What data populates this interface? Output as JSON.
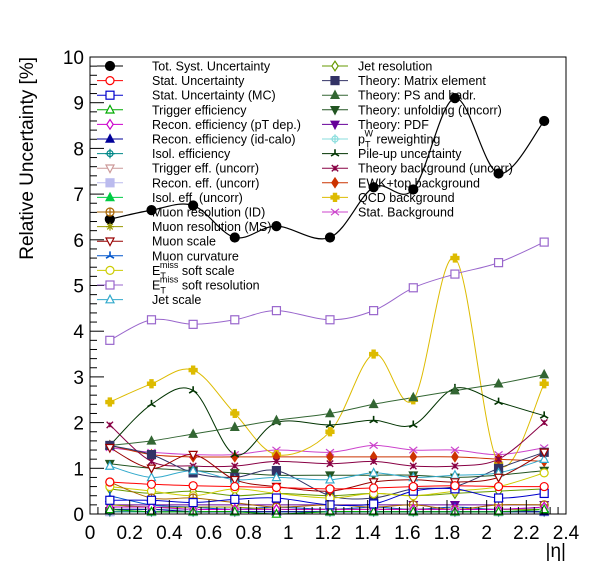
{
  "chart_data": {
    "type": "line",
    "xlabel": "|η|",
    "ylabel": "Relative Uncertainty [%]",
    "xlim": [
      0,
      2.4
    ],
    "ylim": [
      0,
      10
    ],
    "x_ticks": [
      "0",
      "0.2",
      "0.4",
      "0.6",
      "0.8",
      "1",
      "1.2",
      "1.4",
      "1.6",
      "1.8",
      "2",
      "2.2",
      "2.4"
    ],
    "y_ticks": [
      "0",
      "1",
      "2",
      "3",
      "4",
      "5",
      "6",
      "7",
      "8",
      "9",
      "10"
    ],
    "x": [
      0.1,
      0.31,
      0.52,
      0.73,
      0.94,
      1.21,
      1.43,
      1.63,
      1.84,
      2.06,
      2.29
    ],
    "grid": false,
    "legend_position": "top",
    "series": [
      {
        "name": "Tot. Syst. Uncertainty",
        "color": "#000000",
        "marker": "circle-filled",
        "values": [
          6.45,
          6.65,
          6.75,
          6.05,
          6.3,
          6.05,
          7.15,
          7.1,
          9.1,
          7.45,
          8.6
        ]
      },
      {
        "name": "Stat. Uncertainty",
        "color": "#ff0000",
        "marker": "circle-open",
        "values": [
          0.7,
          0.65,
          0.62,
          0.6,
          0.58,
          0.55,
          0.57,
          0.6,
          0.62,
          0.6,
          0.6
        ]
      },
      {
        "name": "Stat. Uncertainty (MC)",
        "color": "#0000cc",
        "marker": "square-open",
        "values": [
          0.3,
          0.3,
          0.25,
          0.32,
          0.35,
          0.2,
          0.22,
          0.5,
          0.55,
          0.35,
          0.45
        ]
      },
      {
        "name": "Trigger efficiency",
        "color": "#00aa00",
        "marker": "triangle-up-open",
        "values": [
          0.1,
          0.05,
          0.05,
          0.05,
          0.0,
          0.05,
          0.05,
          0.05,
          0.05,
          0.05,
          0.1
        ]
      },
      {
        "name": "Recon. efficiency (pT dep.)",
        "color": "#cc00cc",
        "marker": "diamond-open",
        "values": [
          0.15,
          0.15,
          0.1,
          0.1,
          0.1,
          0.1,
          0.1,
          0.1,
          0.1,
          0.1,
          0.15
        ]
      },
      {
        "name": "Recon. efficiency (id-calo)",
        "color": "#000099",
        "marker": "triangle-up-filled",
        "values": [
          0.1,
          0.1,
          0.05,
          0.05,
          0.05,
          0.05,
          0.05,
          0.05,
          0.05,
          0.05,
          0.05
        ]
      },
      {
        "name": "Isol. efficiency",
        "color": "#008888",
        "marker": "crosshair",
        "values": [
          0.05,
          0.05,
          0.05,
          0.05,
          0.05,
          0.05,
          0.05,
          0.05,
          0.05,
          0.05,
          0.05
        ]
      },
      {
        "name": "Trigger eff. (uncorr)",
        "color": "#cc9999",
        "marker": "triangle-down-open",
        "values": [
          0.05,
          0.05,
          0.05,
          0.05,
          0.05,
          0.05,
          0.05,
          0.05,
          0.05,
          0.05,
          0.05
        ]
      },
      {
        "name": "Recon. eff. (uncorr)",
        "color": "#bbbbee",
        "marker": "square-filled",
        "values": [
          0.05,
          0.05,
          0.05,
          0.05,
          0.05,
          0.05,
          0.05,
          0.05,
          0.05,
          0.05,
          0.05
        ]
      },
      {
        "name": "Isol. eff. (uncorr)",
        "color": "#00cc44",
        "marker": "triangle-up-filled",
        "values": [
          0.05,
          0.05,
          0.05,
          0.05,
          0.05,
          0.05,
          0.05,
          0.05,
          0.05,
          0.05,
          0.05
        ]
      },
      {
        "name": "Muon resolution (ID)",
        "color": "#aa6600",
        "marker": "circle-plus",
        "values": [
          0.7,
          0.35,
          0.35,
          0.25,
          0.15,
          0.2,
          0.15,
          0.2,
          0.1,
          0.2,
          0.2
        ]
      },
      {
        "name": "Muon resolution (MS)",
        "color": "#999900",
        "marker": "star",
        "values": [
          0.2,
          0.15,
          0.15,
          0.15,
          0.1,
          0.1,
          0.1,
          0.1,
          0.1,
          0.1,
          0.1
        ]
      },
      {
        "name": "Muon scale",
        "color": "#990000",
        "marker": "triangle-down-open",
        "values": [
          1.45,
          1.0,
          1.3,
          0.75,
          0.6,
          0.5,
          0.7,
          0.75,
          0.7,
          0.8,
          1.35
        ]
      },
      {
        "name": "Muon curvature",
        "color": "#0055cc",
        "marker": "tri-star",
        "values": [
          0.4,
          0.2,
          0.15,
          0.1,
          0.15,
          0.1,
          0.15,
          0.1,
          0.15,
          0.1,
          0.15
        ]
      },
      {
        "name": "E_T^miss soft scale",
        "color": "#cccc00",
        "marker": "circle-open",
        "values": [
          0.6,
          0.5,
          0.4,
          0.55,
          0.45,
          0.35,
          0.45,
          0.4,
          0.5,
          0.6,
          0.9
        ]
      },
      {
        "name": "E_T^miss soft resolution",
        "color": "#9966cc",
        "marker": "square-open",
        "values": [
          3.8,
          4.25,
          4.15,
          4.25,
          4.45,
          4.25,
          4.45,
          4.95,
          5.25,
          5.5,
          5.95
        ]
      },
      {
        "name": "Jet scale",
        "color": "#33aacc",
        "marker": "triangle-up-open",
        "values": [
          1.05,
          0.8,
          0.95,
          0.75,
          0.8,
          0.75,
          0.9,
          0.8,
          0.85,
          0.9,
          1.2
        ]
      },
      {
        "name": "Jet resolution",
        "color": "#669900",
        "marker": "diamond-open",
        "values": [
          0.55,
          0.45,
          0.5,
          0.4,
          0.45,
          0.4,
          0.45,
          0.4,
          0.45,
          0.5,
          0.55
        ]
      },
      {
        "name": "Theory: Matrix element",
        "color": "#333366",
        "marker": "square-filled",
        "values": [
          1.5,
          1.3,
          0.9,
          0.8,
          0.95,
          0.4,
          0.35,
          0.55,
          0.6,
          1.0,
          1.35
        ]
      },
      {
        "name": "Theory: PS and hadr.",
        "color": "#336633",
        "marker": "triangle-up-filled",
        "values": [
          1.5,
          1.6,
          1.75,
          1.9,
          2.05,
          2.2,
          2.4,
          2.55,
          2.7,
          2.85,
          3.05
        ]
      },
      {
        "name": "Theory: unfolding (uncorr)",
        "color": "#225522",
        "marker": "triangle-down-filled",
        "values": [
          1.1,
          1.0,
          0.95,
          0.9,
          0.85,
          0.85,
          0.85,
          0.85,
          0.8,
          0.85,
          0.95
        ]
      },
      {
        "name": "Theory: PDF",
        "color": "#660099",
        "marker": "triangle-down-filled",
        "values": [
          0.2,
          0.2,
          0.2,
          0.2,
          0.2,
          0.2,
          0.2,
          0.2,
          0.2,
          0.2,
          0.2
        ]
      },
      {
        "name": "p_T^W reweighting",
        "color": "#88dddd",
        "marker": "crosshair",
        "values": [
          0.1,
          0.1,
          0.1,
          0.1,
          0.1,
          0.1,
          0.1,
          0.1,
          0.1,
          0.1,
          0.1
        ]
      },
      {
        "name": "Pile-up uncertainty",
        "color": "#003300",
        "marker": "tri-star",
        "values": [
          1.5,
          2.4,
          2.7,
          1.3,
          2.0,
          1.95,
          2.05,
          1.95,
          2.75,
          2.45,
          2.15
        ]
      },
      {
        "name": "Theory background (uncorr)",
        "color": "#880044",
        "marker": "x-star",
        "values": [
          1.95,
          1.15,
          1.05,
          1.05,
          1.15,
          1.1,
          1.15,
          1.05,
          1.05,
          1.2,
          2.0
        ]
      },
      {
        "name": "EWK+top background",
        "color": "#cc3300",
        "marker": "diamond-filled",
        "values": [
          1.5,
          1.3,
          1.25,
          1.25,
          1.25,
          1.25,
          1.25,
          1.25,
          1.25,
          1.2,
          1.15
        ]
      },
      {
        "name": "QCD background",
        "color": "#ddbb00",
        "marker": "cross-filled",
        "values": [
          2.45,
          2.85,
          3.15,
          2.2,
          1.3,
          1.8,
          3.5,
          2.5,
          5.6,
          1.1,
          2.85
        ]
      },
      {
        "name": "Stat. Background",
        "color": "#cc44cc",
        "marker": "x",
        "values": [
          1.45,
          1.35,
          1.3,
          1.3,
          1.4,
          1.35,
          1.5,
          1.4,
          1.4,
          1.3,
          1.45
        ]
      }
    ]
  }
}
